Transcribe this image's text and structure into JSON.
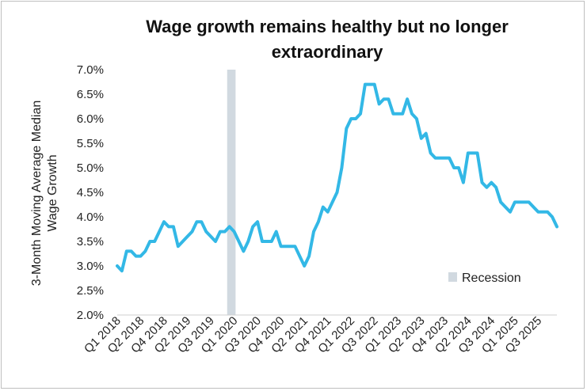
{
  "chart_data": {
    "type": "line",
    "title_lines": [
      "Wage growth remains healthy but no longer",
      "extraordinary"
    ],
    "xlabel": "",
    "ylabel_lines": [
      "3-Month Moving Average Median",
      "Wage Growth"
    ],
    "ylim": [
      0.02,
      0.07
    ],
    "y_ticks": [
      0.02,
      0.025,
      0.03,
      0.035,
      0.04,
      0.045,
      0.05,
      0.055,
      0.06,
      0.065,
      0.07
    ],
    "y_tick_labels": [
      "2.0%",
      "2.5%",
      "3.0%",
      "3.5%",
      "4.0%",
      "4.5%",
      "5.0%",
      "5.5%",
      "6.0%",
      "6.5%",
      "7.0%"
    ],
    "x_tick_labels": [
      "Q1 2018",
      "Q2 2018",
      "Q4 2018",
      "Q2 2019",
      "Q3 2019",
      "Q1 2020",
      "Q3 2020",
      "Q4 2020",
      "Q2 2021",
      "Q4 2021",
      "Q1 2022",
      "Q3 2022",
      "Q1 2023",
      "Q2 2023",
      "Q4 2023",
      "Q2 2024",
      "Q3 2024",
      "Q1 2025",
      "Q3 2025"
    ],
    "x_tick_positions": [
      0,
      5,
      10,
      15,
      20,
      25,
      30,
      35,
      40,
      45,
      50,
      55,
      60,
      65,
      70,
      75,
      80,
      85,
      90
    ],
    "grid": false,
    "legend": {
      "position": "bottom-right",
      "entries": [
        {
          "label": "Recession",
          "color": "#d1d9e0"
        }
      ]
    },
    "recession": {
      "start": 23.5,
      "end": 25.3
    },
    "series": [
      {
        "name": "3-Month Moving Average Median Wage Growth",
        "color": "#33b8e6",
        "values": [
          3.0,
          2.9,
          3.3,
          3.3,
          3.2,
          3.2,
          3.3,
          3.5,
          3.5,
          3.7,
          3.9,
          3.8,
          3.8,
          3.4,
          3.5,
          3.6,
          3.7,
          3.9,
          3.9,
          3.7,
          3.6,
          3.5,
          3.7,
          3.7,
          3.8,
          3.7,
          3.5,
          3.3,
          3.5,
          3.8,
          3.9,
          3.5,
          3.5,
          3.5,
          3.7,
          3.4,
          3.4,
          3.4,
          3.4,
          3.2,
          3.0,
          3.2,
          3.7,
          3.9,
          4.2,
          4.1,
          4.3,
          4.5,
          5.0,
          5.8,
          6.0,
          6.0,
          6.1,
          6.7,
          6.7,
          6.7,
          6.3,
          6.4,
          6.4,
          6.1,
          6.1,
          6.1,
          6.4,
          6.1,
          6.0,
          5.6,
          5.7,
          5.3,
          5.2,
          5.2,
          5.2,
          5.2,
          5.0,
          5.0,
          4.7,
          5.3,
          5.3,
          5.3,
          4.7,
          4.6,
          4.7,
          4.6,
          4.3,
          4.2,
          4.1,
          4.3,
          4.3,
          4.3,
          4.3,
          4.2,
          4.1,
          4.1,
          4.1,
          4.0,
          3.8
        ]
      }
    ]
  }
}
